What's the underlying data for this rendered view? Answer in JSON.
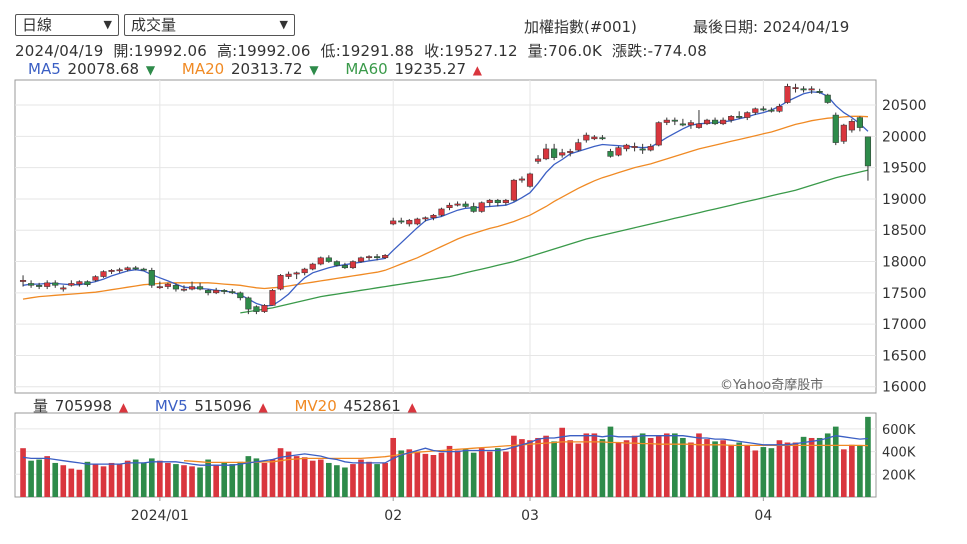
{
  "toolbar": {
    "period_select": "日線",
    "indicator_select": "成交量",
    "index_name": "加權指數(#001)",
    "last_date_label": "最後日期: 2024/04/19"
  },
  "ohlc": {
    "text": "2024/04/19  開:19992.06  高:19992.06  低:19291.88  收:19527.12  量:706.0K  漲跌:-774.08"
  },
  "ma": {
    "ma5_label": "MA5",
    "ma5_value": "20078.68",
    "ma5_arrow": "▼",
    "ma20_label": "MA20",
    "ma20_value": "20313.72",
    "ma20_arrow": "▼",
    "ma60_label": "MA60",
    "ma60_value": "19235.27",
    "ma60_arrow": "▲"
  },
  "volume_legend": {
    "vol_label": "量",
    "vol_value": "705998",
    "vol_arrow": "▲",
    "mv5_label": "MV5",
    "mv5_value": "515096",
    "mv5_arrow": "▲",
    "mv20_label": "MV20",
    "mv20_value": "452861",
    "mv20_arrow": "▲"
  },
  "watermark": "©Yahoo奇摩股市",
  "colors": {
    "up": "#d9363e",
    "down": "#2e8b4a",
    "ma5": "#3b5fc4",
    "ma20": "#f08a24",
    "ma60": "#3a9a4a",
    "down_arrow": "#2e8b4a",
    "up_arrow": "#d9363e"
  },
  "chart_data": {
    "type": "candlestick",
    "price_axis": {
      "ticks": [
        16000,
        16500,
        17000,
        17500,
        18000,
        18500,
        19000,
        19500,
        20000,
        20500
      ]
    },
    "volume_axis": {
      "ticks": [
        "200K",
        "400K",
        "600K"
      ]
    },
    "x_labels": [
      {
        "index": 17,
        "label": "2024/01"
      },
      {
        "index": 46,
        "label": "02"
      },
      {
        "index": 63,
        "label": "03"
      },
      {
        "index": 92,
        "label": "04"
      }
    ],
    "ohlc": [
      [
        17680,
        17780,
        17600,
        17700
      ],
      [
        17650,
        17700,
        17580,
        17620
      ],
      [
        17620,
        17660,
        17560,
        17600
      ],
      [
        17600,
        17700,
        17560,
        17660
      ],
      [
        17660,
        17700,
        17580,
        17620
      ],
      [
        17560,
        17620,
        17520,
        17580
      ],
      [
        17620,
        17700,
        17600,
        17650
      ],
      [
        17640,
        17700,
        17600,
        17680
      ],
      [
        17680,
        17700,
        17600,
        17630
      ],
      [
        17700,
        17780,
        17680,
        17760
      ],
      [
        17760,
        17860,
        17740,
        17840
      ],
      [
        17840,
        17880,
        17800,
        17860
      ],
      [
        17860,
        17900,
        17820,
        17870
      ],
      [
        17870,
        17920,
        17840,
        17900
      ],
      [
        17900,
        17930,
        17860,
        17890
      ],
      [
        17880,
        17900,
        17860,
        17870
      ],
      [
        17860,
        17900,
        17580,
        17620
      ],
      [
        17600,
        17680,
        17560,
        17600
      ],
      [
        17600,
        17660,
        17560,
        17640
      ],
      [
        17620,
        17650,
        17520,
        17560
      ],
      [
        17560,
        17620,
        17520,
        17560
      ],
      [
        17560,
        17680,
        17540,
        17600
      ],
      [
        17600,
        17660,
        17540,
        17560
      ],
      [
        17540,
        17560,
        17460,
        17500
      ],
      [
        17500,
        17580,
        17480,
        17540
      ],
      [
        17540,
        17560,
        17480,
        17520
      ],
      [
        17520,
        17560,
        17480,
        17500
      ],
      [
        17500,
        17520,
        17380,
        17420
      ],
      [
        17420,
        17440,
        17160,
        17240
      ],
      [
        17280,
        17300,
        17160,
        17200
      ],
      [
        17200,
        17320,
        17180,
        17300
      ],
      [
        17300,
        17560,
        17300,
        17540
      ],
      [
        17560,
        17800,
        17540,
        17780
      ],
      [
        17760,
        17840,
        17720,
        17800
      ],
      [
        17800,
        17840,
        17720,
        17820
      ],
      [
        17820,
        17900,
        17780,
        17880
      ],
      [
        17880,
        17980,
        17860,
        17960
      ],
      [
        17960,
        18080,
        17940,
        18060
      ],
      [
        18060,
        18100,
        17980,
        18000
      ],
      [
        18000,
        18020,
        17920,
        17940
      ],
      [
        17940,
        17980,
        17880,
        17900
      ],
      [
        17900,
        18020,
        17880,
        18000
      ],
      [
        18000,
        18080,
        17980,
        18060
      ],
      [
        18060,
        18100,
        18020,
        18080
      ],
      [
        18080,
        18120,
        18020,
        18060
      ],
      [
        18060,
        18120,
        18040,
        18100
      ],
      [
        18600,
        18700,
        18580,
        18650
      ],
      [
        18650,
        18700,
        18600,
        18640
      ],
      [
        18600,
        18680,
        18560,
        18660
      ],
      [
        18600,
        18700,
        18580,
        18680
      ],
      [
        18680,
        18720,
        18640,
        18700
      ],
      [
        18700,
        18760,
        18660,
        18740
      ],
      [
        18740,
        18860,
        18720,
        18840
      ],
      [
        18860,
        18940,
        18820,
        18900
      ],
      [
        18900,
        18960,
        18880,
        18920
      ],
      [
        18920,
        18960,
        18860,
        18880
      ],
      [
        18880,
        18940,
        18780,
        18800
      ],
      [
        18800,
        18960,
        18780,
        18940
      ],
      [
        18940,
        19000,
        18880,
        18980
      ],
      [
        18980,
        19000,
        18880,
        18940
      ],
      [
        18940,
        19000,
        18900,
        18980
      ],
      [
        18980,
        19320,
        18960,
        19300
      ],
      [
        19300,
        19360,
        19260,
        19320
      ],
      [
        19200,
        19420,
        19180,
        19400
      ],
      [
        19600,
        19700,
        19560,
        19640
      ],
      [
        19640,
        19880,
        19620,
        19800
      ],
      [
        19800,
        19880,
        19620,
        19660
      ],
      [
        19700,
        19800,
        19660,
        19740
      ],
      [
        19740,
        19800,
        19680,
        19760
      ],
      [
        19780,
        19960,
        19760,
        19900
      ],
      [
        19940,
        20060,
        19900,
        20020
      ],
      [
        19960,
        20020,
        19940,
        19990
      ],
      [
        19980,
        20020,
        19940,
        19960
      ],
      [
        19760,
        19800,
        19660,
        19680
      ],
      [
        19700,
        19840,
        19680,
        19820
      ],
      [
        19800,
        19880,
        19760,
        19860
      ],
      [
        19820,
        19900,
        19760,
        19840
      ],
      [
        19800,
        19880,
        19720,
        19780
      ],
      [
        19780,
        19880,
        19760,
        19840
      ],
      [
        19860,
        20240,
        19840,
        20220
      ],
      [
        20220,
        20300,
        20180,
        20260
      ],
      [
        20260,
        20300,
        20180,
        20240
      ],
      [
        20200,
        20280,
        20160,
        20180
      ],
      [
        20180,
        20260,
        20120,
        20220
      ],
      [
        20140,
        20420,
        20120,
        20200
      ],
      [
        20200,
        20280,
        20180,
        20260
      ],
      [
        20260,
        20300,
        20180,
        20200
      ],
      [
        20200,
        20300,
        20180,
        20260
      ],
      [
        20260,
        20340,
        20220,
        20320
      ],
      [
        20320,
        20400,
        20280,
        20300
      ],
      [
        20300,
        20400,
        20260,
        20380
      ],
      [
        20380,
        20460,
        20340,
        20440
      ],
      [
        20440,
        20480,
        20400,
        20420
      ],
      [
        20420,
        20460,
        20380,
        20400
      ],
      [
        20400,
        20520,
        20380,
        20480
      ],
      [
        20540,
        20840,
        20520,
        20800
      ],
      [
        20760,
        20840,
        20700,
        20780
      ],
      [
        20760,
        20800,
        20700,
        20740
      ],
      [
        20740,
        20800,
        20680,
        20760
      ],
      [
        20720,
        20760,
        20680,
        20700
      ],
      [
        20660,
        20680,
        20520,
        20540
      ],
      [
        20340,
        20380,
        19860,
        19900
      ],
      [
        19920,
        20200,
        19880,
        20180
      ],
      [
        20100,
        20280,
        20060,
        20240
      ],
      [
        20300,
        20320,
        20080,
        20140
      ],
      [
        19992,
        19992,
        19292,
        19527
      ]
    ],
    "ma5": [
      17620,
      17640,
      17640,
      17650,
      17650,
      17640,
      17630,
      17630,
      17650,
      17680,
      17720,
      17770,
      17810,
      17850,
      17870,
      17850,
      17790,
      17740,
      17690,
      17640,
      17590,
      17580,
      17570,
      17560,
      17540,
      17530,
      17510,
      17470,
      17400,
      17330,
      17290,
      17300,
      17380,
      17480,
      17620,
      17740,
      17820,
      17860,
      17900,
      17930,
      17950,
      17970,
      17990,
      18010,
      18030,
      18050,
      18180,
      18300,
      18420,
      18540,
      18650,
      18690,
      18720,
      18770,
      18820,
      18850,
      18860,
      18870,
      18880,
      18890,
      18900,
      18950,
      19020,
      19100,
      19250,
      19420,
      19550,
      19630,
      19720,
      19760,
      19800,
      19840,
      19870,
      19860,
      19850,
      19840,
      19830,
      19820,
      19830,
      19900,
      19980,
      20050,
      20120,
      20180,
      20200,
      20210,
      20220,
      20230,
      20250,
      20280,
      20310,
      20350,
      20380,
      20420,
      20480,
      20560,
      20620,
      20680,
      20710,
      20700,
      20640,
      20490,
      20380,
      20300,
      20200,
      20080
    ],
    "ma20": [
      17400,
      17420,
      17440,
      17450,
      17460,
      17470,
      17480,
      17490,
      17500,
      17510,
      17530,
      17550,
      17570,
      17590,
      17610,
      17630,
      17640,
      17650,
      17660,
      17660,
      17660,
      17660,
      17660,
      17660,
      17650,
      17640,
      17630,
      17620,
      17600,
      17580,
      17570,
      17580,
      17590,
      17610,
      17630,
      17650,
      17670,
      17690,
      17710,
      17730,
      17750,
      17770,
      17790,
      17810,
      17830,
      17860,
      17910,
      17960,
      18010,
      18060,
      18120,
      18180,
      18240,
      18300,
      18360,
      18410,
      18450,
      18490,
      18530,
      18560,
      18600,
      18640,
      18690,
      18740,
      18810,
      18880,
      18960,
      19030,
      19100,
      19170,
      19230,
      19290,
      19340,
      19380,
      19420,
      19460,
      19500,
      19530,
      19560,
      19600,
      19640,
      19680,
      19720,
      19760,
      19800,
      19830,
      19860,
      19890,
      19920,
      19950,
      19980,
      20010,
      20040,
      20070,
      20110,
      20150,
      20190,
      20220,
      20250,
      20270,
      20290,
      20300,
      20310,
      20320,
      20320,
      20314
    ],
    "ma60": [
      null,
      null,
      null,
      null,
      null,
      null,
      null,
      null,
      null,
      null,
      null,
      null,
      null,
      null,
      null,
      null,
      null,
      null,
      null,
      null,
      null,
      null,
      null,
      null,
      null,
      null,
      null,
      17180,
      17200,
      17220,
      17240,
      17260,
      17290,
      17320,
      17350,
      17380,
      17410,
      17440,
      17460,
      17480,
      17500,
      17520,
      17540,
      17560,
      17580,
      17600,
      17620,
      17640,
      17660,
      17680,
      17700,
      17720,
      17740,
      17760,
      17790,
      17820,
      17850,
      17880,
      17910,
      17940,
      17970,
      18000,
      18040,
      18080,
      18120,
      18160,
      18200,
      18240,
      18280,
      18320,
      18360,
      18390,
      18420,
      18450,
      18480,
      18510,
      18540,
      18570,
      18600,
      18630,
      18660,
      18690,
      18720,
      18750,
      18780,
      18810,
      18840,
      18870,
      18900,
      18930,
      18960,
      18990,
      19020,
      19050,
      19080,
      19110,
      19140,
      19180,
      19220,
      19260,
      19300,
      19340,
      19370,
      19400,
      19430,
      19460
    ],
    "volume": [
      430,
      320,
      330,
      360,
      300,
      280,
      250,
      240,
      310,
      290,
      270,
      300,
      290,
      320,
      330,
      300,
      340,
      320,
      300,
      290,
      280,
      270,
      260,
      330,
      280,
      300,
      290,
      310,
      360,
      340,
      300,
      330,
      430,
      400,
      360,
      350,
      320,
      330,
      300,
      280,
      260,
      290,
      330,
      310,
      290,
      300,
      520,
      410,
      420,
      400,
      380,
      370,
      390,
      450,
      410,
      420,
      390,
      430,
      400,
      430,
      400,
      540,
      510,
      500,
      520,
      540,
      490,
      610,
      500,
      470,
      560,
      560,
      510,
      620,
      480,
      500,
      540,
      560,
      520,
      540,
      560,
      560,
      520,
      480,
      560,
      510,
      490,
      500,
      460,
      480,
      450,
      410,
      440,
      430,
      500,
      480,
      480,
      530,
      520,
      520,
      560,
      620,
      420,
      460,
      450,
      706
    ],
    "mv5": [
      350,
      340,
      340,
      340,
      330,
      320,
      310,
      300,
      290,
      290,
      290,
      290,
      290,
      300,
      300,
      300,
      310,
      310,
      310,
      310,
      300,
      290,
      280,
      280,
      280,
      280,
      280,
      290,
      300,
      310,
      320,
      330,
      350,
      360,
      370,
      380,
      370,
      360,
      340,
      330,
      310,
      300,
      300,
      300,
      300,
      300,
      340,
      370,
      390,
      410,
      430,
      410,
      400,
      400,
      400,
      410,
      410,
      410,
      410,
      410,
      420,
      440,
      460,
      480,
      510,
      520,
      520,
      530,
      540,
      540,
      540,
      540,
      530,
      540,
      530,
      530,
      530,
      540,
      540,
      540,
      540,
      540,
      540,
      530,
      520,
      520,
      510,
      510,
      500,
      490,
      480,
      470,
      460,
      460,
      460,
      460,
      470,
      480,
      490,
      500,
      520,
      540,
      530,
      520,
      510,
      515
    ],
    "mv20": [
      null,
      null,
      null,
      null,
      null,
      null,
      null,
      null,
      null,
      null,
      null,
      null,
      null,
      null,
      null,
      null,
      null,
      null,
      null,
      null,
      320,
      315,
      310,
      305,
      305,
      305,
      305,
      305,
      305,
      305,
      310,
      310,
      320,
      330,
      335,
      340,
      340,
      340,
      340,
      340,
      340,
      340,
      340,
      345,
      350,
      355,
      365,
      375,
      385,
      395,
      400,
      405,
      410,
      415,
      420,
      425,
      430,
      435,
      440,
      445,
      450,
      455,
      460,
      465,
      470,
      475,
      480,
      485,
      485,
      485,
      485,
      485,
      485,
      480,
      480,
      475,
      475,
      470,
      470,
      465,
      465,
      465,
      465,
      465,
      460,
      460,
      460,
      460,
      455,
      455,
      455,
      455,
      455,
      455,
      455,
      455,
      455,
      455,
      455,
      455,
      455,
      455,
      455,
      455,
      455,
      453
    ]
  }
}
